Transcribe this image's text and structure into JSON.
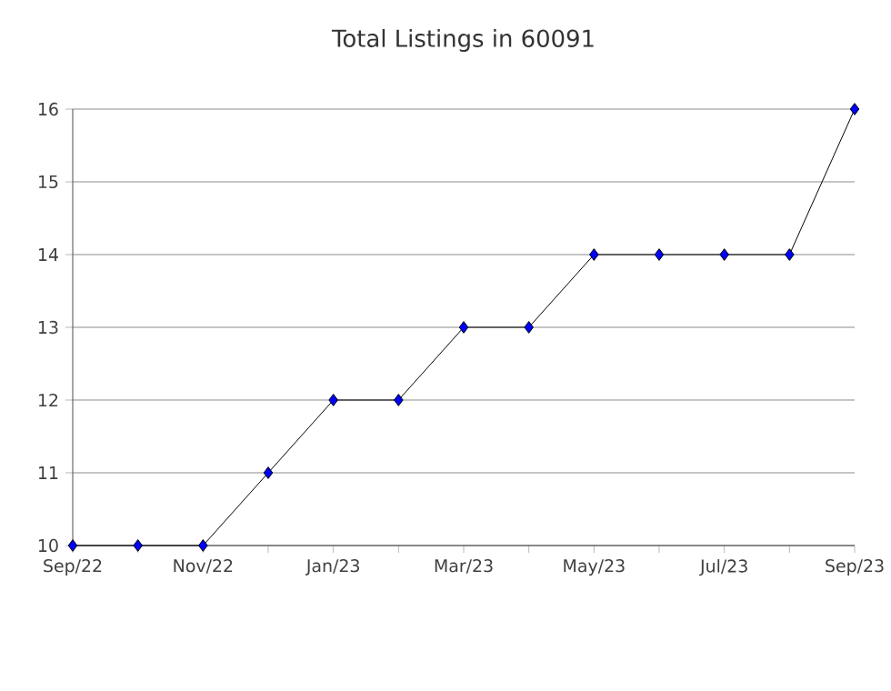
{
  "chart_data": {
    "type": "line",
    "title": "Total Listings in 60091",
    "categories": [
      "Sep/22",
      null,
      "Nov/22",
      null,
      "Jan/23",
      null,
      "Mar/23",
      null,
      "May/23",
      null,
      "Jul/23",
      null,
      "Sep/23"
    ],
    "series": [
      {
        "color": "#0000ff",
        "values": [
          10,
          10,
          10,
          11,
          12,
          12,
          13,
          13,
          14,
          14,
          14,
          14,
          16
        ]
      }
    ],
    "ylim": [
      10,
      16
    ],
    "yticks": [
      10,
      11,
      12,
      13,
      14,
      15,
      16
    ],
    "grid": "y",
    "marker": "diamond",
    "line_style": "solid"
  }
}
